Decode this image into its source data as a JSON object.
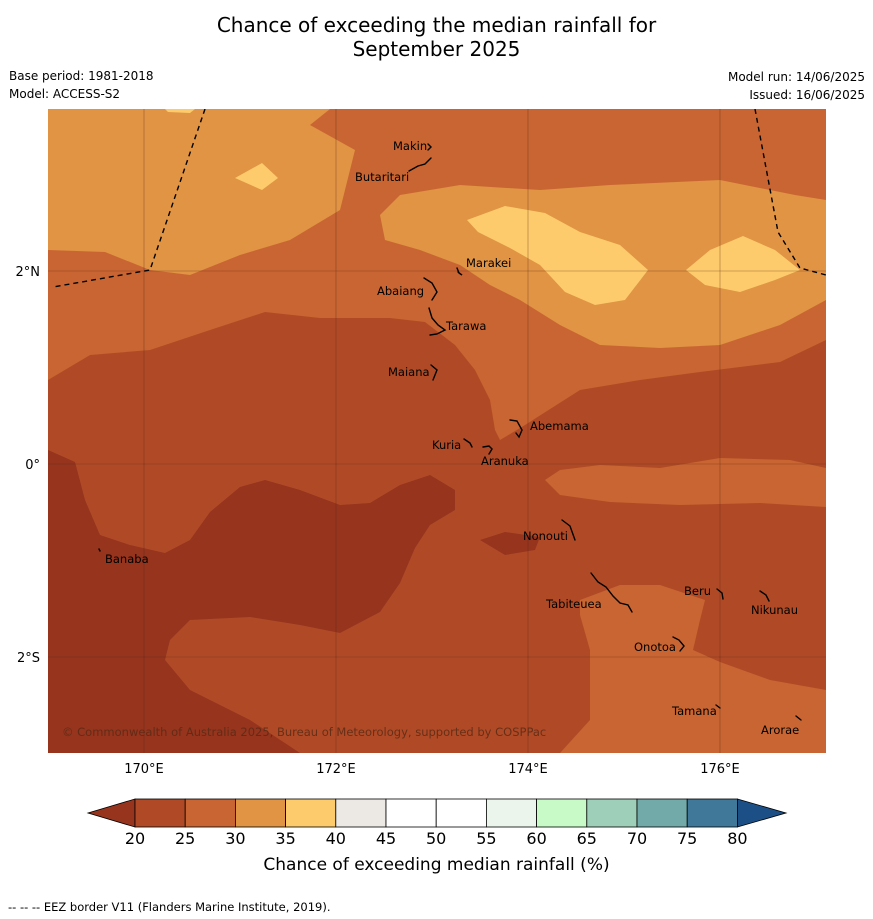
{
  "title": {
    "line1": "Chance of exceeding the median rainfall for",
    "line2": "September 2025"
  },
  "meta": {
    "base_period": "Base period: 1981-2018",
    "model": "Model: ACCESS-S2",
    "model_run": "Model run: 14/06/2025",
    "issued": "Issued: 16/06/2025"
  },
  "map": {
    "lat_labels": [
      "2°N",
      "0°",
      "2°S"
    ],
    "lon_labels": [
      "170°E",
      "172°E",
      "174°E",
      "176°E"
    ],
    "copyright": "© Commonwealth of Australia 2025, Bureau of Meteorology, supported by COSPPac",
    "islands": [
      "Makin",
      "Butaritari",
      "Marakei",
      "Abaiang",
      "Tarawa",
      "Maiana",
      "Abemama",
      "Kuria",
      "Aranuka",
      "Nonouti",
      "Banaba",
      "Tabiteuea",
      "Beru",
      "Nikunau",
      "Onotoa",
      "Tamana",
      "Arorae"
    ]
  },
  "colorbar": {
    "label": "Chance of exceeding median rainfall (%)",
    "ticks": [
      "20",
      "25",
      "30",
      "35",
      "40",
      "45",
      "50",
      "55",
      "60",
      "65",
      "70",
      "75",
      "80"
    ],
    "colors": [
      "#96341e",
      "#b04a26",
      "#c96532",
      "#e09444",
      "#fdcb6b",
      "#ece8e4",
      "#ffffff",
      "#ffffff",
      "#ebf5eb",
      "#c8fac8",
      "#9ecfb8",
      "#72aaa9",
      "#3f7899",
      "#1d4f87"
    ]
  },
  "footnote": "-- -- -- EEZ border V11 (Flanders Marine Institute, 2019)."
}
